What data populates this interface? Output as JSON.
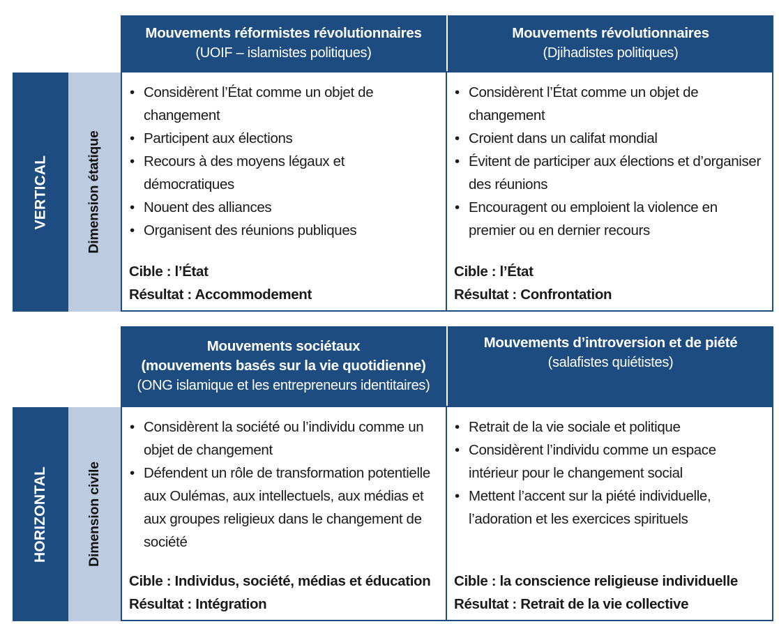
{
  "vertical_section": {
    "axis_label": "VERTICAL",
    "dimension_label": "Dimension étatique",
    "columns": [
      {
        "title": "Mouvements réformistes révolutionnaires",
        "subtitle": "(UOIF – islamistes politiques)",
        "items": [
          "Considèrent l’État comme un objet de changement",
          "Participent aux élections",
          "Recours à des moyens légaux et démocratiques",
          "Nouent des alliances",
          "Organisent des réunions publiques"
        ],
        "target": "Cible : l’État",
        "result": "Résultat : Accommodement"
      },
      {
        "title": "Mouvements révolutionnaires",
        "subtitle": "(Djihadistes politiques)",
        "items": [
          "Considèrent l’État comme un objet de changement",
          "Croient dans un califat mondial",
          "Évitent de participer aux élections et d’organiser des réunions",
          "Encouragent ou emploient la violence en premier ou en dernier recours"
        ],
        "target": "Cible : l’État",
        "result": "Résultat : Confrontation"
      }
    ]
  },
  "horizontal_section": {
    "axis_label": "HORIZONTAL",
    "dimension_label": "Dimension civile",
    "columns": [
      {
        "title_line1": "Mouvements sociétaux",
        "title_line2": "(mouvements basés sur la vie quotidienne)",
        "subtitle": "(ONG islamique et les entrepreneurs identitaires)",
        "items": [
          "Considèrent la société ou l’individu comme un objet de changement",
          "Défendent un rôle de transformation potentielle aux Oulémas, aux intellectuels, aux médias et aux groupes religieux dans le changement de société"
        ],
        "target": "Cible : Individus, société, médias et éducation",
        "result": "Résultat : Intégration"
      },
      {
        "title": "Mouvements d’introversion et de piété",
        "subtitle": "(salafistes quiétistes)",
        "items": [
          "Retrait de la vie sociale et politique",
          "Considèrent l’individu comme un espace intérieur pour le changement social",
          "Mettent l’accent sur la piété individuelle, l’adoration et les exercices spirituels"
        ],
        "target": "Cible : la conscience religieuse individuelle",
        "result": "Résultat : Retrait de la vie collective"
      }
    ]
  },
  "bullet_glyph": "•",
  "colors": {
    "header_bg": "#1c4c80",
    "dimension_bg": "#bccbe0",
    "text": "#1a1a1a"
  }
}
